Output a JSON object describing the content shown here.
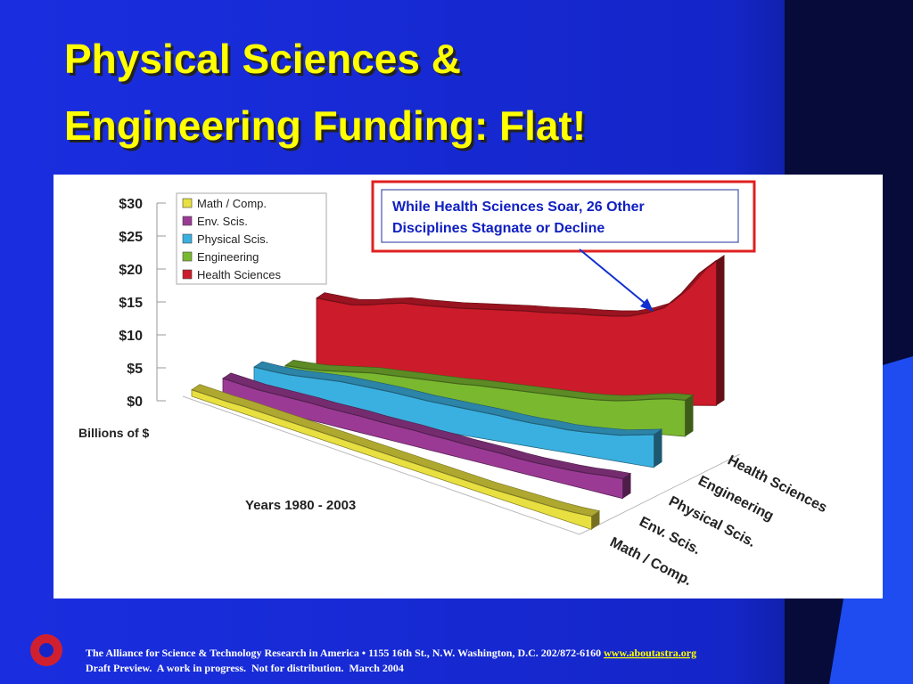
{
  "title": [
    "Physical Sciences &",
    "Engineering Funding: Flat!"
  ],
  "callout": [
    "While Health Sciences Soar, 26 Other",
    "Disciplines Stagnate or Decline"
  ],
  "footer": {
    "line1": "The Alliance for Science & Technology Research in America • 1155 16th St., N.W. Washington, D.C. 202/872-6160",
    "link": "www.aboutastra.org",
    "line2": "Draft Preview.  A work in progress.  Not for distribution.  March 2004"
  },
  "chart_data": {
    "type": "ribbon3d",
    "xlabel": "Years 1980 - 2003",
    "ylabel": "Billions of $",
    "categories": [
      null,
      null,
      null,
      null,
      null,
      null,
      null,
      null,
      null,
      null,
      null,
      null,
      null,
      null,
      null,
      null,
      null,
      null,
      null,
      null,
      null,
      null,
      null,
      null
    ],
    "ylim": [
      0,
      30
    ],
    "yticks": [
      {
        "value": 0,
        "label": "$0"
      },
      {
        "value": 5,
        "label": "$5"
      },
      {
        "value": 10,
        "label": "$10"
      },
      {
        "value": 15,
        "label": "$15"
      },
      {
        "value": 20,
        "label": "$20"
      },
      {
        "value": 25,
        "label": "$25"
      },
      {
        "value": 30,
        "label": "$30"
      }
    ],
    "series": [
      {
        "name": "Math / Comp.",
        "color": "#e8e040",
        "values": [
          1,
          1,
          1,
          1.1,
          1.1,
          1.1,
          1.1,
          1.1,
          1.1,
          1.1,
          1.1,
          1.1,
          1.1,
          1.1,
          1.1,
          1.1,
          1.1,
          1.1,
          1.2,
          1.3,
          1.4,
          1.5,
          1.7,
          2
        ]
      },
      {
        "name": "Env. Scis.",
        "color": "#9b3a94",
        "values": [
          3,
          2.8,
          2.6,
          2.6,
          2.6,
          2.6,
          2.5,
          2.5,
          2.5,
          2.4,
          2.4,
          2.4,
          2.3,
          2.3,
          2.2,
          2.2,
          2.2,
          2.1,
          2.1,
          2.2,
          2.3,
          2.5,
          2.8,
          3
        ]
      },
      {
        "name": "Physical Scis.",
        "color": "#3ab0e0",
        "values": [
          5,
          4.8,
          4.7,
          4.8,
          4.9,
          5,
          4.9,
          4.8,
          4.7,
          4.5,
          4.3,
          4.2,
          4.1,
          4,
          3.9,
          3.7,
          3.6,
          3.6,
          3.5,
          3.6,
          3.8,
          4,
          4.5,
          5
        ]
      },
      {
        "name": "Engineering",
        "color": "#7ab830",
        "values": [
          5.5,
          5.3,
          5.2,
          5.3,
          5.4,
          5.5,
          5.4,
          5.3,
          5.2,
          5.1,
          5,
          5,
          4.9,
          4.8,
          4.7,
          4.6,
          4.5,
          4.4,
          4.4,
          4.5,
          4.8,
          5.2,
          5.5,
          5.5
        ]
      },
      {
        "name": "Health Sciences",
        "color": "#cc1b2a",
        "values": [
          16,
          15.5,
          15,
          15,
          15.2,
          15.3,
          15,
          14.8,
          14.6,
          14.5,
          14.4,
          14.3,
          14.2,
          14,
          13.9,
          13.8,
          13.6,
          13.5,
          13.5,
          14,
          14.8,
          17,
          20,
          22
        ]
      }
    ]
  }
}
